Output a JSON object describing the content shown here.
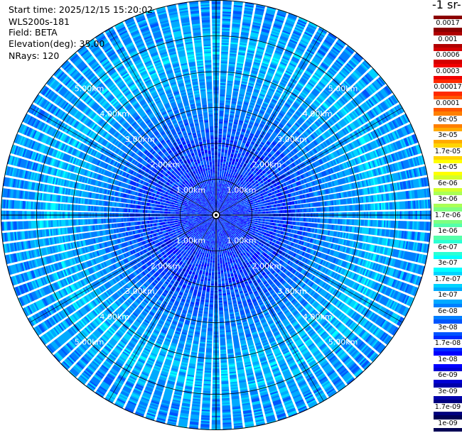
{
  "info": {
    "start_time": "Start time: 2025/12/15 15:20:02",
    "device": "WLS200s-181",
    "field": "Field: BETA",
    "elevation": "Elevation(deg): 35.00",
    "nrays": "NRays: 120"
  },
  "colorbar": {
    "unit_label": "-1 sr-",
    "levels": [
      {
        "label": "0.0017",
        "color": "#8b0000"
      },
      {
        "label": "0.001",
        "color": "#b00000"
      },
      {
        "label": "0.0006",
        "color": "#d40000"
      },
      {
        "label": "0.0003",
        "color": "#f20000"
      },
      {
        "label": "0.00017",
        "color": "#ff2a00"
      },
      {
        "label": "0.0001",
        "color": "#ff5500"
      },
      {
        "label": "6e-05",
        "color": "#ff7f00"
      },
      {
        "label": "3e-05",
        "color": "#ffaa00"
      },
      {
        "label": "1.7e-05",
        "color": "#ffd400"
      },
      {
        "label": "1e-05",
        "color": "#ffff00"
      },
      {
        "label": "6e-06",
        "color": "#d4ff2a"
      },
      {
        "label": "3e-06",
        "color": "#aaff55"
      },
      {
        "label": "1.7e-06",
        "color": "#7fff7f"
      },
      {
        "label": "1e-06",
        "color": "#55ffaa"
      },
      {
        "label": "6e-07",
        "color": "#2affd4"
      },
      {
        "label": "3e-07",
        "color": "#00ffff"
      },
      {
        "label": "1.7e-07",
        "color": "#00d4ff"
      },
      {
        "label": "1e-07",
        "color": "#00aaff"
      },
      {
        "label": "6e-08",
        "color": "#007fff"
      },
      {
        "label": "3e-08",
        "color": "#0055ff"
      },
      {
        "label": "1.7e-08",
        "color": "#002aff"
      },
      {
        "label": "1e-08",
        "color": "#0000ff"
      },
      {
        "label": "6e-09",
        "color": "#0000d4"
      },
      {
        "label": "3e-09",
        "color": "#0000aa"
      },
      {
        "label": "1.7e-09",
        "color": "#00007f"
      },
      {
        "label": "1e-09",
        "color": "#000055"
      }
    ]
  },
  "chart_data": {
    "type": "heatmap",
    "projection": "polar",
    "field": "BETA",
    "nrays": 120,
    "max_range_km": 6.0,
    "range_rings_km": [
      1,
      2,
      3,
      4,
      5
    ],
    "range_ring_labels": [
      "1.00km",
      "2.00km",
      "3.00km",
      "4.00km",
      "5.00km"
    ],
    "spokes_deg": [
      0,
      30,
      60,
      90,
      120,
      150,
      180,
      210,
      240,
      270,
      300,
      330
    ],
    "radial_profile": [
      {
        "range_km": 0.5,
        "value_range": [
          "1e-08",
          "3e-08"
        ]
      },
      {
        "range_km": 2.0,
        "value_range": [
          "1e-08",
          "6e-08"
        ]
      },
      {
        "range_km": 3.0,
        "value_range": [
          "3e-08",
          "1e-07"
        ]
      },
      {
        "range_km": 4.5,
        "value_range": [
          "6e-08",
          "3e-07"
        ]
      },
      {
        "range_km": 5.5,
        "value_range": [
          "3e-08",
          "1.7e-07"
        ]
      }
    ],
    "colorscale_min": "1e-09",
    "colorscale_max": "0.0017"
  }
}
